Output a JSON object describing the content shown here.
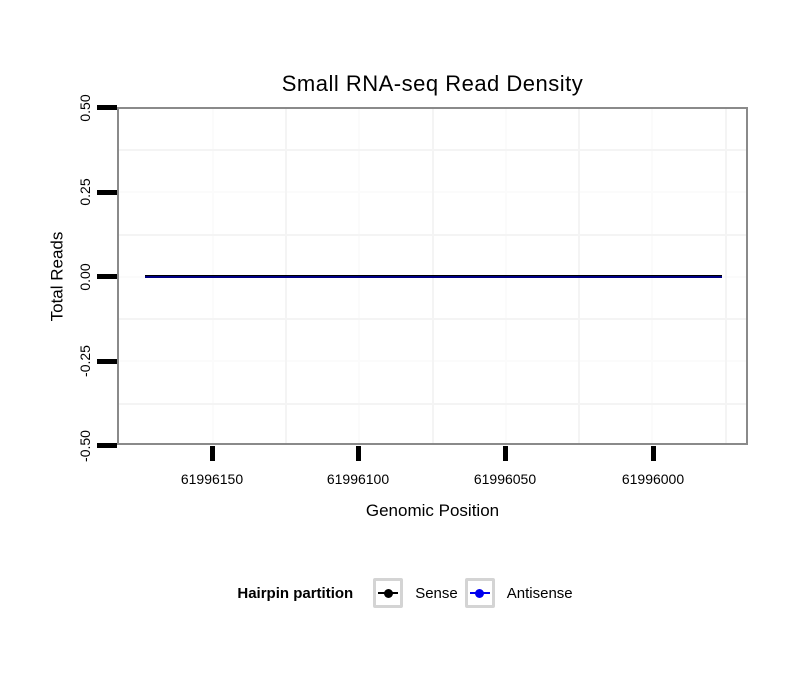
{
  "chart_data": {
    "type": "line",
    "title": "Small RNA-seq Read Density",
    "xlabel": "Genomic Position",
    "ylabel": "Total Reads",
    "x_tick_labels": [
      "61996150",
      "61996100",
      "61996050",
      "61996000"
    ],
    "y_tick_labels": [
      "0.50",
      "0.25",
      "0.00",
      "-0.25",
      "-0.50"
    ],
    "x_axis": {
      "reversed": true,
      "approx_left_value": 61996185,
      "approx_right_value": 61995965,
      "tick_step": 50
    },
    "ylim": [
      -0.5,
      0.5
    ],
    "grid": {
      "minor_visible": true,
      "minor_color": "#f4f4f4",
      "panel_background": "#ffffff"
    },
    "series": [
      {
        "name": "Sense",
        "color": "#000000",
        "shape": "flat-line",
        "y_value": 0,
        "x_start": 61996173,
        "x_end": 61995976
      },
      {
        "name": "Antisense",
        "color": "#0000EE",
        "shape": "flat-line",
        "y_value": 0,
        "x_start": 61996173,
        "x_end": 61995976
      }
    ],
    "legend": {
      "title": "Hairpin partition",
      "position": "bottom",
      "items": [
        {
          "label": "Sense",
          "color": "#000000"
        },
        {
          "label": "Antisense",
          "color": "#0000EE"
        }
      ]
    }
  },
  "colors": {
    "panel_border": "#8a8a8a",
    "tick": "#000000",
    "legend_key_border": "#d4d4d4",
    "sense": "#000000",
    "antisense": "#0000EE"
  }
}
